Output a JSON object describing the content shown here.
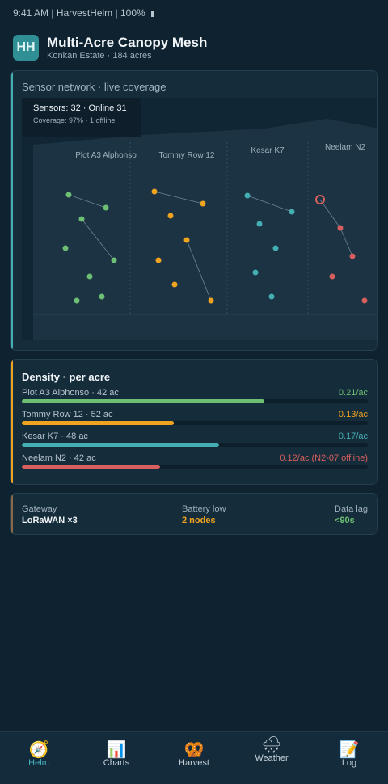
{
  "status": {
    "time": "9:41 AM",
    "app": "HarvestHelm",
    "battery": "100%"
  },
  "header": {
    "avatar": "HH",
    "title": "Multi-Acre Canopy Mesh",
    "subtitle": "Konkan Estate · 184 acres"
  },
  "coverage": {
    "title": "Sensor network · live coverage",
    "info_line1": "Sensors: 32 · Online 31",
    "info_line2": "Coverage: 97% · 1 offline",
    "plots": [
      {
        "name": "Plot A3 Alphonso",
        "color": "#6cbf73"
      },
      {
        "name": "Tommy Row 12",
        "color": "#f0a31f"
      },
      {
        "name": "Kesar K7",
        "color": "#45aeb2"
      },
      {
        "name": "Neelam N2",
        "color": "#d85f5d"
      }
    ]
  },
  "density": {
    "title": "Density · per acre",
    "rows": [
      {
        "label": "Plot A3 Alphonso · 42 ac",
        "value": "0.21/ac",
        "color": "#6cbf73",
        "fraction": 0.7
      },
      {
        "label": "Tommy Row 12 · 52 ac",
        "value": "0.13/ac",
        "color": "#f0a31f",
        "fraction": 0.44
      },
      {
        "label": "Kesar K7 · 48 ac",
        "value": "0.17/ac",
        "color": "#45aeb2",
        "fraction": 0.57
      },
      {
        "label": "Neelam N2 · 42 ac",
        "value": "0.12/ac (N2-07 offline)",
        "color": "#d85f5d",
        "fraction": 0.4
      }
    ]
  },
  "stats": {
    "gateway": {
      "label": "Gateway",
      "value": "LoRaWAN ×3",
      "color": "#eef3f6"
    },
    "battery": {
      "label": "Battery low",
      "value": "2 nodes",
      "color": "#f0a31f"
    },
    "lag": {
      "label": "Data lag",
      "value": "<90s",
      "color": "#6cbf73"
    }
  },
  "tabs": [
    {
      "label": "Helm",
      "icon": "compass-icon",
      "glyph": "🧭",
      "active": true
    },
    {
      "label": "Charts",
      "icon": "bar-chart-icon",
      "glyph": "📊",
      "active": false
    },
    {
      "label": "Harvest",
      "icon": "pretzel-icon",
      "glyph": "🥨",
      "active": false
    },
    {
      "label": "Weather",
      "icon": "rain-cloud-icon",
      "glyph": "🌧",
      "active": false
    },
    {
      "label": "Log",
      "icon": "memo-icon",
      "glyph": "📝",
      "active": false
    }
  ]
}
